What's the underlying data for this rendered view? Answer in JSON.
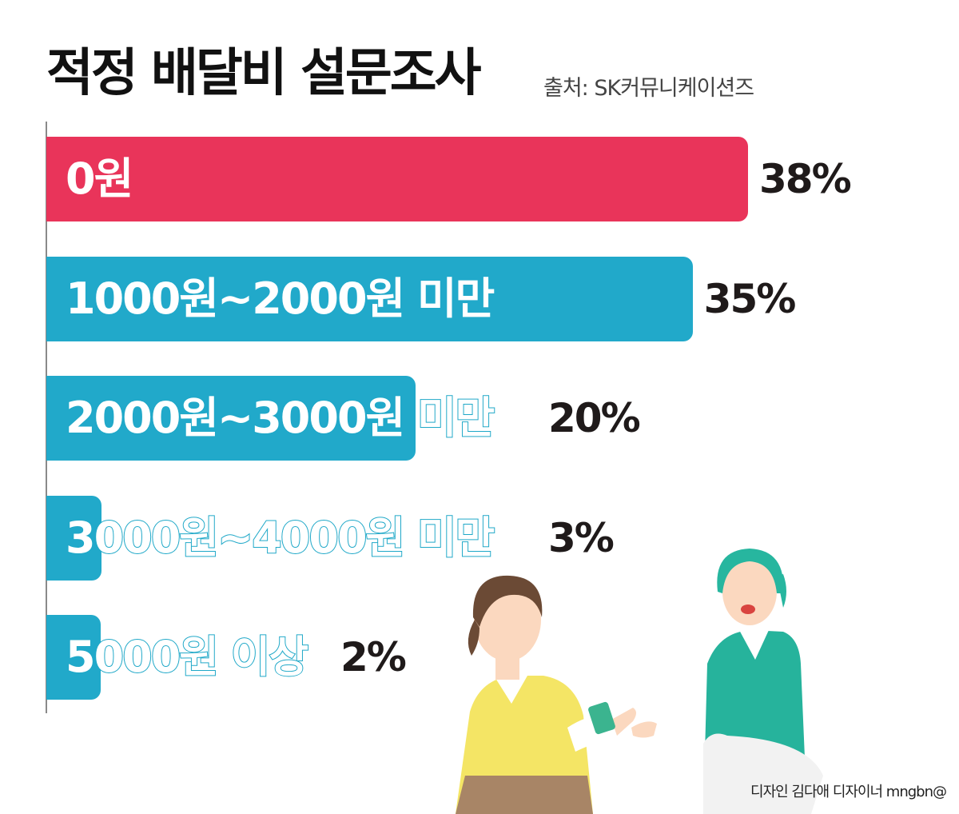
{
  "chart_data": {
    "type": "bar",
    "orientation": "horizontal",
    "title": "적정 배달비 설문조사",
    "source": "출처: SK커뮤니케이션즈",
    "categories": [
      "0원",
      "1000원~2000원 미만",
      "2000원~3000원 미만",
      "3000원~4000원 미만",
      "5000원 이상"
    ],
    "values": [
      38,
      35,
      20,
      3,
      2
    ],
    "value_labels": [
      "38%",
      "35%",
      "20%",
      "3%",
      "2%"
    ],
    "unit": "%",
    "xlim": [
      0,
      38
    ],
    "grid": false,
    "legend": "none",
    "colors": [
      "#e9345a",
      "#21a9ca",
      "#21a9ca",
      "#21a9ca",
      "#21a9ca"
    ]
  },
  "credit": "디자인 김다애 디자이너 mngbn@"
}
